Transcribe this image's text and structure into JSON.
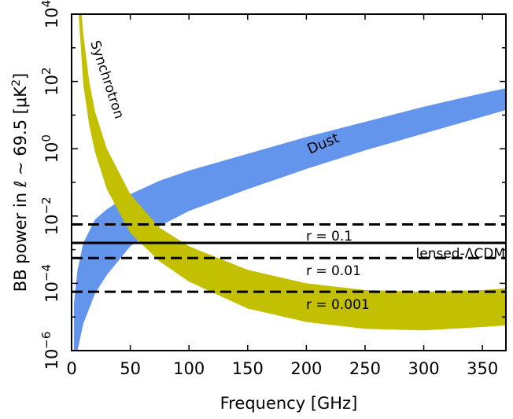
{
  "chart_data": {
    "type": "area",
    "xlabel": "Frequency [GHz]",
    "ylabel_prefix": "BB power in ℓ ∼ 69.5 [μK",
    "ylabel_sup": "2",
    "ylabel_suffix": "]",
    "xlim": [
      0,
      370
    ],
    "ylim_log10": [
      -6,
      4
    ],
    "x_ticks": [
      0,
      50,
      100,
      150,
      200,
      250,
      300,
      350
    ],
    "y_ticks": [
      {
        "base": "10",
        "exp": "4",
        "log": 4
      },
      {
        "base": "10",
        "exp": "2",
        "log": 2
      },
      {
        "base": "10",
        "exp": "0",
        "log": 0
      },
      {
        "base": "10",
        "exp": "−2",
        "log": -2
      },
      {
        "base": "10",
        "exp": "−4",
        "log": -4
      },
      {
        "base": "10",
        "exp": "−6",
        "log": -6
      }
    ],
    "series": [
      {
        "name": "Dust",
        "color": "#6495ed",
        "label_color": "#1a1aff",
        "x": [
          2,
          5,
          10,
          20,
          30,
          50,
          75,
          100,
          150,
          200,
          250,
          300,
          350,
          370
        ],
        "upper_log10": [
          -4.6,
          -3.6,
          -2.8,
          -2.1,
          -1.8,
          -1.35,
          -0.95,
          -0.65,
          -0.15,
          0.35,
          0.8,
          1.25,
          1.65,
          1.8
        ],
        "lower_log10": [
          -7,
          -6.0,
          -5.2,
          -4.3,
          -3.75,
          -2.9,
          -2.3,
          -1.85,
          -1.2,
          -0.6,
          -0.05,
          0.45,
          0.95,
          1.15
        ]
      },
      {
        "name": "Synchrotron",
        "color": "#c2c000",
        "label_color": "#c2c000",
        "x": [
          5,
          10,
          15,
          20,
          30,
          50,
          75,
          100,
          150,
          200,
          250,
          300,
          350,
          370
        ],
        "upper_log10": [
          5.5,
          3.4,
          2.0,
          1.1,
          0.0,
          -1.35,
          -2.35,
          -2.9,
          -3.6,
          -4.0,
          -4.2,
          -4.25,
          -4.2,
          -4.15
        ],
        "lower_log10": [
          4.5,
          1.9,
          0.7,
          -0.1,
          -1.2,
          -2.5,
          -3.35,
          -3.95,
          -4.75,
          -5.15,
          -5.35,
          -5.4,
          -5.3,
          -5.25
        ]
      }
    ],
    "hlines": [
      {
        "name": "r-0.1",
        "log10": -2.25,
        "style": "dashed",
        "label": "r = 0.1"
      },
      {
        "name": "lensed",
        "log10": -2.8,
        "style": "solid",
        "label": "lensed-ΛCDM"
      },
      {
        "name": "r-0.01",
        "log10": -3.25,
        "style": "dashed",
        "label": "r = 0.01"
      },
      {
        "name": "r-0.001",
        "log10": -4.25,
        "style": "dashed",
        "label": "r = 0.001"
      }
    ]
  }
}
